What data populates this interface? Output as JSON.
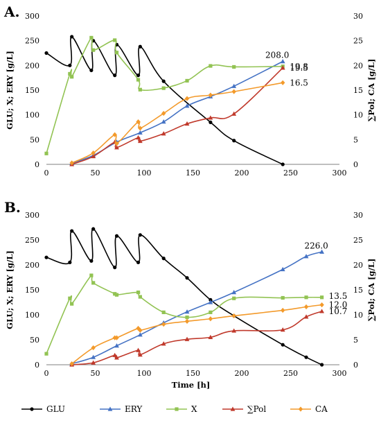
{
  "chart_data": [
    {
      "type": "line",
      "panel_label": "A.",
      "xlim": [
        0,
        300
      ],
      "xticks": [
        0,
        50,
        100,
        150,
        200,
        250,
        300
      ],
      "ylim_left": [
        0,
        300
      ],
      "yticks_left": [
        0,
        50,
        100,
        150,
        200,
        250,
        300
      ],
      "ylim_right": [
        0,
        30
      ],
      "yticks_right": [
        0,
        5,
        10,
        15,
        20,
        25,
        30
      ],
      "ylabel_left": "GLU; X; ERY [g/L]",
      "ylabel_right": "∑Pol; CA [g/L]",
      "xlabel": "",
      "grid": false,
      "series": [
        {
          "key": "GLU",
          "axis": "left",
          "color": "#000000",
          "marker": "circle",
          "points": [
            [
              0,
              225
            ],
            [
              24,
              200
            ],
            [
              26,
              258
            ],
            [
              46,
              190
            ],
            [
              48,
              250
            ],
            [
              70,
              180
            ],
            [
              72,
              242
            ],
            [
              94,
              180
            ],
            [
              96,
              238
            ],
            [
              120,
              168
            ],
            [
              168,
              85
            ],
            [
              192,
              48
            ],
            [
              242,
              0
            ]
          ]
        },
        {
          "key": "ERY",
          "axis": "left",
          "color": "#4472c4",
          "marker": "triangle",
          "points": [
            [
              26,
              2
            ],
            [
              48,
              18
            ],
            [
              72,
              45
            ],
            [
              96,
              64
            ],
            [
              120,
              86
            ],
            [
              144,
              118
            ],
            [
              168,
              137
            ],
            [
              192,
              158
            ],
            [
              242,
              208
            ]
          ]
        },
        {
          "key": "X",
          "axis": "right",
          "color": "#92c353",
          "marker": "square",
          "points": [
            [
              0,
              2.2
            ],
            [
              24,
              18.3
            ],
            [
              26,
              17.7
            ],
            [
              46,
              25.6
            ],
            [
              48,
              23.1
            ],
            [
              70,
              25.1
            ],
            [
              72,
              22.6
            ],
            [
              94,
              17.1
            ],
            [
              96,
              15.1
            ],
            [
              120,
              15.4
            ],
            [
              144,
              16.9
            ],
            [
              168,
              19.9
            ],
            [
              192,
              19.7
            ],
            [
              242,
              19.8
            ]
          ]
        },
        {
          "key": "Pol",
          "axis": "right",
          "color": "#c0392b",
          "marker": "triangle",
          "points": [
            [
              26,
              0
            ],
            [
              48,
              1.6
            ],
            [
              70,
              4.5
            ],
            [
              72,
              3.4
            ],
            [
              94,
              5.4
            ],
            [
              96,
              4.7
            ],
            [
              120,
              6.2
            ],
            [
              144,
              8.2
            ],
            [
              168,
              9.4
            ],
            [
              192,
              10.2
            ],
            [
              242,
              19.5
            ]
          ]
        },
        {
          "key": "CA",
          "axis": "right",
          "color": "#f39a2b",
          "marker": "diamond",
          "points": [
            [
              26,
              0.3
            ],
            [
              48,
              2.3
            ],
            [
              70,
              6.0
            ],
            [
              72,
              4.2
            ],
            [
              94,
              8.6
            ],
            [
              96,
              7.3
            ],
            [
              120,
              10.3
            ],
            [
              144,
              13.3
            ],
            [
              168,
              14.0
            ],
            [
              192,
              14.7
            ],
            [
              242,
              16.5
            ]
          ]
        }
      ],
      "end_labels": [
        {
          "text": "208.0",
          "series": "ERY"
        },
        {
          "text": "19.8",
          "series": "X"
        },
        {
          "text": "19.5",
          "series": "Pol"
        },
        {
          "text": "16.5",
          "series": "CA"
        }
      ]
    },
    {
      "type": "line",
      "panel_label": "B.",
      "xlim": [
        0,
        300
      ],
      "xticks": [
        0,
        50,
        100,
        150,
        200,
        250,
        300
      ],
      "ylim_left": [
        0,
        300
      ],
      "yticks_left": [
        0,
        50,
        100,
        150,
        200,
        250,
        300
      ],
      "ylim_right": [
        0,
        30
      ],
      "yticks_right": [
        0,
        5,
        10,
        15,
        20,
        25,
        30
      ],
      "ylabel_left": "GLU; X; ERY [g/L]",
      "ylabel_right": "∑Pol; CA [g/L]",
      "xlabel": "Time [h]",
      "grid": false,
      "series": [
        {
          "key": "GLU",
          "axis": "left",
          "color": "#000000",
          "marker": "circle",
          "points": [
            [
              0,
              215
            ],
            [
              24,
              205
            ],
            [
              26,
              268
            ],
            [
              46,
              208
            ],
            [
              48,
              272
            ],
            [
              70,
              195
            ],
            [
              72,
              258
            ],
            [
              94,
              205
            ],
            [
              96,
              260
            ],
            [
              120,
              213
            ],
            [
              144,
              174
            ],
            [
              168,
              130
            ],
            [
              192,
              98
            ],
            [
              242,
              40
            ],
            [
              266,
              15
            ],
            [
              282,
              0
            ]
          ]
        },
        {
          "key": "ERY",
          "axis": "left",
          "color": "#4472c4",
          "marker": "triangle",
          "points": [
            [
              26,
              2
            ],
            [
              48,
              15
            ],
            [
              72,
              38
            ],
            [
              96,
              60
            ],
            [
              120,
              84
            ],
            [
              144,
              106
            ],
            [
              168,
              125
            ],
            [
              192,
              145
            ],
            [
              242,
              191
            ],
            [
              266,
              217
            ],
            [
              282,
              226
            ]
          ]
        },
        {
          "key": "X",
          "axis": "right",
          "color": "#92c353",
          "marker": "square",
          "points": [
            [
              0,
              2.2
            ],
            [
              24,
              13.3
            ],
            [
              26,
              12.2
            ],
            [
              46,
              17.9
            ],
            [
              48,
              16.4
            ],
            [
              70,
              14.2
            ],
            [
              72,
              14.0
            ],
            [
              94,
              14.5
            ],
            [
              96,
              13.6
            ],
            [
              120,
              10.5
            ],
            [
              144,
              9.5
            ],
            [
              168,
              10.5
            ],
            [
              192,
              13.3
            ],
            [
              242,
              13.4
            ],
            [
              266,
              13.5
            ],
            [
              282,
              13.5
            ]
          ]
        },
        {
          "key": "Pol",
          "axis": "right",
          "color": "#c0392b",
          "marker": "triangle",
          "points": [
            [
              26,
              0
            ],
            [
              48,
              0.4
            ],
            [
              70,
              1.9
            ],
            [
              72,
              1.4
            ],
            [
              94,
              2.9
            ],
            [
              96,
              2.0
            ],
            [
              120,
              4.2
            ],
            [
              144,
              5.1
            ],
            [
              168,
              5.5
            ],
            [
              192,
              6.8
            ],
            [
              242,
              7.0
            ],
            [
              266,
              9.6
            ],
            [
              282,
              10.7
            ]
          ]
        },
        {
          "key": "CA",
          "axis": "right",
          "color": "#f39a2b",
          "marker": "diamond",
          "points": [
            [
              26,
              0.2
            ],
            [
              48,
              3.4
            ],
            [
              70,
              5.4
            ],
            [
              72,
              5.4
            ],
            [
              94,
              7.3
            ],
            [
              96,
              6.9
            ],
            [
              120,
              8.1
            ],
            [
              144,
              8.7
            ],
            [
              168,
              9.2
            ],
            [
              192,
              9.8
            ],
            [
              242,
              10.9
            ],
            [
              266,
              11.6
            ],
            [
              282,
              12.0
            ]
          ]
        }
      ],
      "end_labels": [
        {
          "text": "226.0",
          "series": "ERY"
        },
        {
          "text": "13.5",
          "series": "X"
        },
        {
          "text": "12.0",
          "series": "CA"
        },
        {
          "text": "10.7",
          "series": "Pol"
        }
      ]
    }
  ],
  "legend": {
    "placement": "bottom",
    "entries": [
      {
        "key": "GLU",
        "label": "GLU",
        "color": "#000000",
        "marker": "circle"
      },
      {
        "key": "ERY",
        "label": "ERY",
        "color": "#4472c4",
        "marker": "triangle"
      },
      {
        "key": "X",
        "label": "X",
        "color": "#92c353",
        "marker": "square"
      },
      {
        "key": "Pol",
        "label": "∑Pol",
        "color": "#c0392b",
        "marker": "triangle"
      },
      {
        "key": "CA",
        "label": "CA",
        "color": "#f39a2b",
        "marker": "diamond"
      }
    ]
  }
}
